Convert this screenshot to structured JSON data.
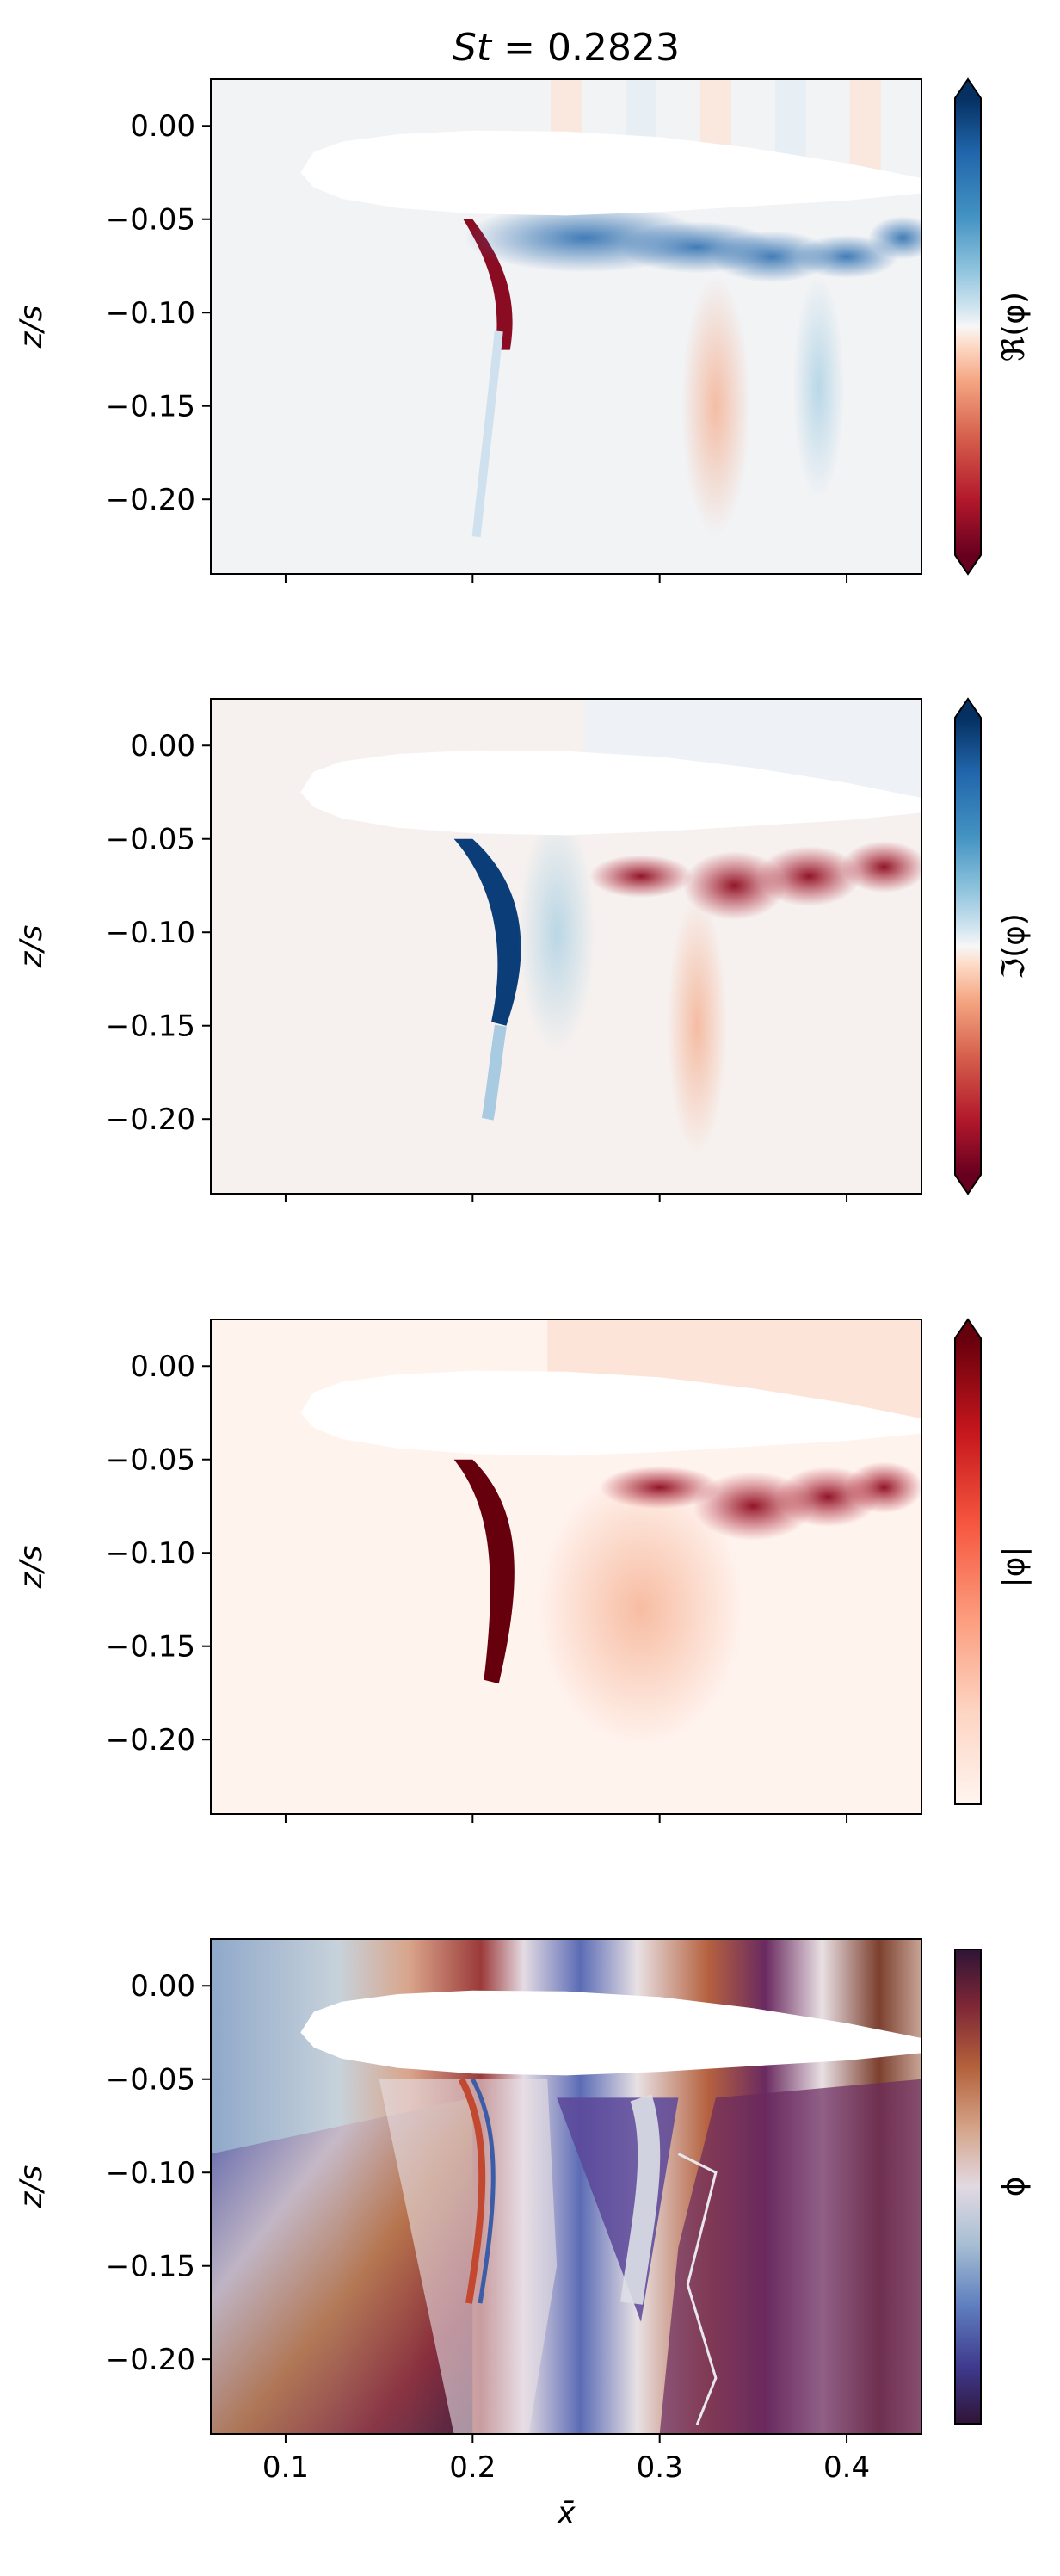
{
  "chart_data": [
    {
      "type": "heatmap",
      "title_math": "St = 0.2823",
      "title_var": "St",
      "title_value": "= 0.2823",
      "ylabel": "z/s",
      "xlabel": "",
      "colorbar_label": "ℜ(φ)",
      "colorbar_extend": "both",
      "colormap": "RdBu",
      "xlim": [
        0.06,
        0.44
      ],
      "ylim": [
        -0.24,
        0.025
      ],
      "xticks": [
        0.1,
        0.2,
        0.3,
        0.4
      ],
      "yticks": [
        0.0,
        -0.05,
        -0.1,
        -0.15,
        -0.2
      ],
      "ytick_labels": [
        "0.00",
        "−0.05",
        "−0.10",
        "−0.15",
        "−0.20"
      ]
    },
    {
      "type": "heatmap",
      "ylabel": "z/s",
      "xlabel": "",
      "colorbar_label": "ℑ(φ)",
      "colorbar_extend": "both",
      "colormap": "RdBu",
      "xlim": [
        0.06,
        0.44
      ],
      "ylim": [
        -0.24,
        0.025
      ],
      "xticks": [
        0.1,
        0.2,
        0.3,
        0.4
      ],
      "yticks": [
        0.0,
        -0.05,
        -0.1,
        -0.15,
        -0.2
      ],
      "ytick_labels": [
        "0.00",
        "−0.05",
        "−0.10",
        "−0.15",
        "−0.20"
      ]
    },
    {
      "type": "heatmap",
      "ylabel": "z/s",
      "xlabel": "",
      "colorbar_label": "|φ|",
      "colorbar_extend": "max",
      "colormap": "Reds",
      "xlim": [
        0.06,
        0.44
      ],
      "ylim": [
        -0.24,
        0.025
      ],
      "xticks": [
        0.1,
        0.2,
        0.3,
        0.4
      ],
      "yticks": [
        0.0,
        -0.05,
        -0.1,
        -0.15,
        -0.2
      ],
      "ytick_labels": [
        "0.00",
        "−0.05",
        "−0.10",
        "−0.15",
        "−0.20"
      ]
    },
    {
      "type": "heatmap",
      "ylabel": "z/s",
      "xlabel": "x̄",
      "colorbar_label": "ϕ",
      "colorbar_extend": "neither",
      "colormap": "twilight_shifted",
      "xlim": [
        0.06,
        0.44
      ],
      "ylim": [
        -0.24,
        0.025
      ],
      "xticks": [
        0.1,
        0.2,
        0.3,
        0.4
      ],
      "xtick_labels": [
        "0.1",
        "0.2",
        "0.3",
        "0.4"
      ],
      "yticks": [
        0.0,
        -0.05,
        -0.1,
        -0.15,
        -0.2
      ],
      "ytick_labels": [
        "0.00",
        "−0.05",
        "−0.10",
        "−0.15",
        "−0.20"
      ]
    }
  ]
}
